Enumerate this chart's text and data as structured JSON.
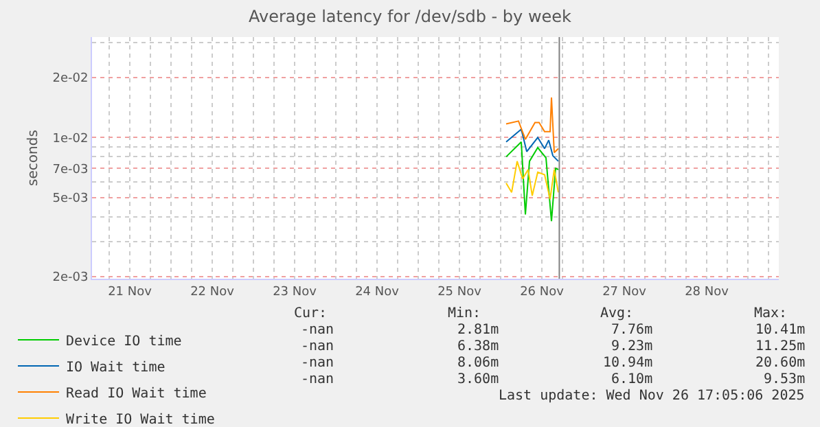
{
  "chart_data": {
    "type": "line",
    "title": "Average latency for /dev/sdb - by week",
    "ylabel": "seconds",
    "log": "y",
    "grid": true,
    "legend": "bottom",
    "line_style": "solid",
    "xlim": [
      "2025-11-21T01:00",
      "2025-11-29T09:00"
    ],
    "xticks": [
      {
        "value": "2025-11-21T12:00",
        "label": "21 Nov"
      },
      {
        "value": "2025-11-22T12:00",
        "label": "22 Nov"
      },
      {
        "value": "2025-11-23T12:00",
        "label": "23 Nov"
      },
      {
        "value": "2025-11-24T12:00",
        "label": "24 Nov"
      },
      {
        "value": "2025-11-25T12:00",
        "label": "25 Nov"
      },
      {
        "value": "2025-11-26T12:00",
        "label": "26 Nov"
      },
      {
        "value": "2025-11-27T12:00",
        "label": "27 Nov"
      },
      {
        "value": "2025-11-28T12:00",
        "label": "28 Nov"
      }
    ],
    "ylim": [
      0.00195,
      0.032
    ],
    "yticks": [
      {
        "value": 0.002,
        "label": "2e-03"
      },
      {
        "value": 0.003,
        "label": null
      },
      {
        "value": 0.004,
        "label": null
      },
      {
        "value": 0.005,
        "label": "5e-03"
      },
      {
        "value": 0.006,
        "label": null
      },
      {
        "value": 0.007,
        "label": "7e-03"
      },
      {
        "value": 0.008,
        "label": null
      },
      {
        "value": 0.009,
        "label": null
      },
      {
        "value": 0.01,
        "label": "1e-02"
      },
      {
        "value": 0.02,
        "label": "2e-02"
      },
      {
        "value": 0.03,
        "label": null
      }
    ],
    "ref_lines": [
      {
        "axis": "x",
        "value": "2025-11-26T17:05",
        "color": "#808080"
      }
    ],
    "series": [
      {
        "name": "Device IO time",
        "color": "#00cc00",
        "x": [
          "2025-11-26T01:36",
          "2025-11-26T06:00",
          "2025-11-26T07:12",
          "2025-11-26T08:24",
          "2025-11-26T10:48",
          "2025-11-26T13:12",
          "2025-11-26T14:48",
          "2025-11-26T16:00",
          "2025-11-26T16:48"
        ],
        "values": [
          0.008,
          0.0095,
          0.0041,
          0.0076,
          0.0089,
          0.0079,
          0.0038,
          0.007,
          0.0069
        ]
      },
      {
        "name": "IO Wait time",
        "color": "#0066b3",
        "x": [
          "2025-11-26T01:36",
          "2025-11-26T06:00",
          "2025-11-26T07:36",
          "2025-11-26T10:48",
          "2025-11-26T12:48",
          "2025-11-26T14:00",
          "2025-11-26T15:12",
          "2025-11-26T16:48"
        ],
        "values": [
          0.0095,
          0.011,
          0.0085,
          0.01,
          0.0088,
          0.0097,
          0.0081,
          0.0076
        ]
      },
      {
        "name": "Read IO Wait time",
        "color": "#ff8000",
        "x": [
          "2025-11-26T01:36",
          "2025-11-26T05:12",
          "2025-11-26T07:12",
          "2025-11-26T10:00",
          "2025-11-26T11:12",
          "2025-11-26T12:48",
          "2025-11-26T14:24",
          "2025-11-26T14:48",
          "2025-11-26T15:36",
          "2025-11-26T16:48"
        ],
        "values": [
          0.0117,
          0.0121,
          0.0098,
          0.0119,
          0.0119,
          0.0107,
          0.0107,
          0.0159,
          0.0084,
          0.0088
        ]
      },
      {
        "name": "Write IO Wait time",
        "color": "#ffcc00",
        "x": [
          "2025-11-26T01:36",
          "2025-11-26T03:12",
          "2025-11-26T04:48",
          "2025-11-26T06:24",
          "2025-11-26T08:00",
          "2025-11-26T09:12",
          "2025-11-26T10:48",
          "2025-11-26T12:48",
          "2025-11-26T14:24",
          "2025-11-26T15:36",
          "2025-11-26T16:48"
        ],
        "values": [
          0.0059,
          0.0053,
          0.0076,
          0.0062,
          0.0069,
          0.0051,
          0.0067,
          0.0065,
          0.0049,
          0.0069,
          0.0053
        ]
      }
    ],
    "annotations": [
      "Cur:",
      "Min:",
      "Avg:",
      "Max:",
      "-nan",
      "2.81m",
      "7.76m",
      "10.41m",
      "-nan",
      "6.38m",
      "9.23m",
      "11.25m",
      "-nan",
      "8.06m",
      "10.94m",
      "20.60m",
      "-nan",
      "3.60m",
      "6.10m",
      "9.53m",
      "Last update: Wed Nov 26 17:05:06 2025"
    ]
  }
}
